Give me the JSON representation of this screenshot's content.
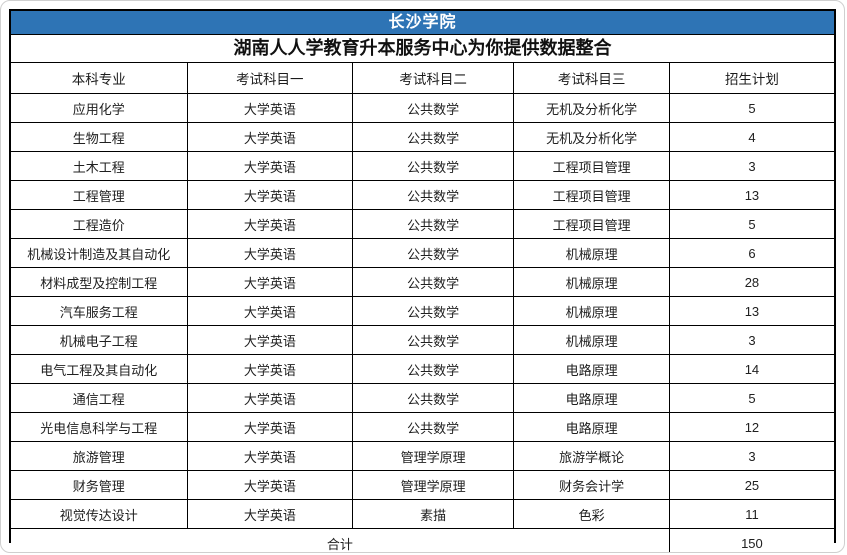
{
  "page": {
    "title": "长沙学院",
    "subtitle": "湖南人人学教育升本服务中心为你提供数据整合"
  },
  "colors": {
    "title_bar_bg": "#2e74b5",
    "title_text": "#ffffff",
    "table_border": "#000000",
    "body_text": "#202020"
  },
  "table": {
    "columns": [
      "本科专业",
      "考试科目一",
      "考试科目二",
      "考试科目三",
      "招生计划"
    ],
    "rows": [
      [
        "应用化学",
        "大学英语",
        "公共数学",
        "无机及分析化学",
        "5"
      ],
      [
        "生物工程",
        "大学英语",
        "公共数学",
        "无机及分析化学",
        "4"
      ],
      [
        "土木工程",
        "大学英语",
        "公共数学",
        "工程项目管理",
        "3"
      ],
      [
        "工程管理",
        "大学英语",
        "公共数学",
        "工程项目管理",
        "13"
      ],
      [
        "工程造价",
        "大学英语",
        "公共数学",
        "工程项目管理",
        "5"
      ],
      [
        "机械设计制造及其自动化",
        "大学英语",
        "公共数学",
        "机械原理",
        "6"
      ],
      [
        "材料成型及控制工程",
        "大学英语",
        "公共数学",
        "机械原理",
        "28"
      ],
      [
        "汽车服务工程",
        "大学英语",
        "公共数学",
        "机械原理",
        "13"
      ],
      [
        "机械电子工程",
        "大学英语",
        "公共数学",
        "机械原理",
        "3"
      ],
      [
        "电气工程及其自动化",
        "大学英语",
        "公共数学",
        "电路原理",
        "14"
      ],
      [
        "通信工程",
        "大学英语",
        "公共数学",
        "电路原理",
        "5"
      ],
      [
        "光电信息科学与工程",
        "大学英语",
        "公共数学",
        "电路原理",
        "12"
      ],
      [
        "旅游管理",
        "大学英语",
        "管理学原理",
        "旅游学概论",
        "3"
      ],
      [
        "财务管理",
        "大学英语",
        "管理学原理",
        "财务会计学",
        "25"
      ],
      [
        "视觉传达设计",
        "大学英语",
        "素描",
        "色彩",
        "11"
      ]
    ],
    "footer": {
      "label": "合计",
      "total": "150"
    }
  }
}
